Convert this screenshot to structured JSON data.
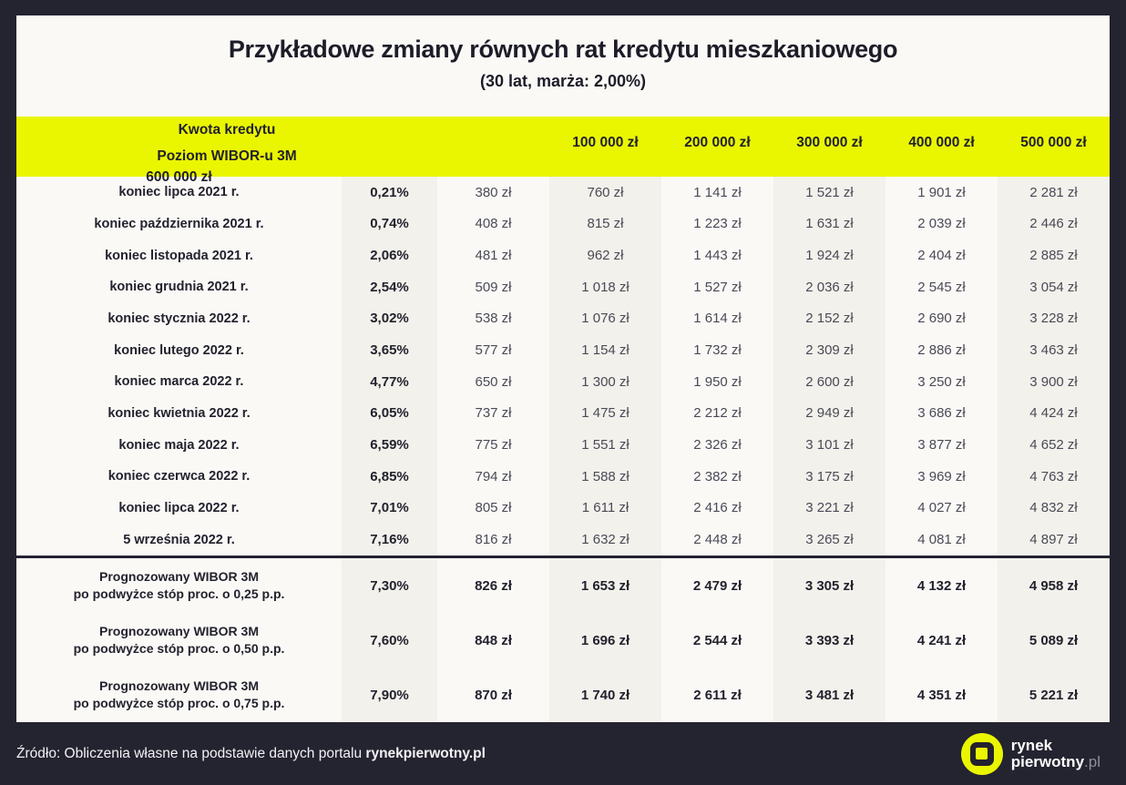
{
  "colors": {
    "background": "#242330",
    "card": "#faf9f6",
    "accent_yellow": "#eaf600",
    "column_tint": "#f2f1eb",
    "text_dark": "#23222e"
  },
  "chart_data": {
    "type": "table",
    "title": "Przykładowe zmiany równych rat kredytu mieszkaniowego",
    "subtitle": "(30 lat, marża: 2,00%)",
    "header": {
      "label_line1": "Kwota kredytu",
      "label_line2": "Poziom WIBOR-u 3M",
      "amount_columns": [
        "100 000 zł",
        "200 000 zł",
        "300 000 zł",
        "400 000 zł",
        "500 000 zł",
        "600 000 zł"
      ]
    },
    "rows": [
      {
        "label": "koniec lipca 2021 r.",
        "wibor": "0,21%",
        "values": [
          "380 zł",
          "760 zł",
          "1 141 zł",
          "1 521 zł",
          "1 901 zł",
          "2 281 zł"
        ]
      },
      {
        "label": "koniec października 2021 r.",
        "wibor": "0,74%",
        "values": [
          "408 zł",
          "815 zł",
          "1 223 zł",
          "1 631 zł",
          "2 039 zł",
          "2 446 zł"
        ]
      },
      {
        "label": "koniec listopada 2021 r.",
        "wibor": "2,06%",
        "values": [
          "481 zł",
          "962 zł",
          "1 443 zł",
          "1 924 zł",
          "2 404 zł",
          "2 885 zł"
        ]
      },
      {
        "label": "koniec grudnia 2021 r.",
        "wibor": "2,54%",
        "values": [
          "509 zł",
          "1 018 zł",
          "1 527 zł",
          "2 036 zł",
          "2 545 zł",
          "3 054 zł"
        ]
      },
      {
        "label": "koniec stycznia 2022 r.",
        "wibor": "3,02%",
        "values": [
          "538 zł",
          "1 076 zł",
          "1 614 zł",
          "2 152 zł",
          "2 690 zł",
          "3 228 zł"
        ]
      },
      {
        "label": "koniec lutego 2022 r.",
        "wibor": "3,65%",
        "values": [
          "577 zł",
          "1 154 zł",
          "1 732 zł",
          "2 309 zł",
          "2 886 zł",
          "3 463 zł"
        ]
      },
      {
        "label": "koniec marca 2022 r.",
        "wibor": "4,77%",
        "values": [
          "650 zł",
          "1 300 zł",
          "1 950 zł",
          "2 600 zł",
          "3 250 zł",
          "3 900 zł"
        ]
      },
      {
        "label": "koniec kwietnia 2022 r.",
        "wibor": "6,05%",
        "values": [
          "737 zł",
          "1 475 zł",
          "2 212 zł",
          "2 949 zł",
          "3 686 zł",
          "4 424 zł"
        ]
      },
      {
        "label": "koniec maja 2022 r.",
        "wibor": "6,59%",
        "values": [
          "775 zł",
          "1 551 zł",
          "2 326 zł",
          "3 101 zł",
          "3 877 zł",
          "4 652 zł"
        ]
      },
      {
        "label": "koniec czerwca 2022 r.",
        "wibor": "6,85%",
        "values": [
          "794 zł",
          "1 588 zł",
          "2 382 zł",
          "3 175 zł",
          "3 969 zł",
          "4 763 zł"
        ]
      },
      {
        "label": "koniec lipca 2022 r.",
        "wibor": "7,01%",
        "values": [
          "805 zł",
          "1 611 zł",
          "2 416 zł",
          "3 221 zł",
          "4 027 zł",
          "4 832 zł"
        ]
      },
      {
        "label": "5 września 2022 r.",
        "wibor": "7,16%",
        "values": [
          "816 zł",
          "1 632 zł",
          "2 448 zł",
          "3 265 zł",
          "4 081 zł",
          "4 897 zł"
        ]
      }
    ],
    "forecast_rows": [
      {
        "label_line1": "Prognozowany WIBOR 3M",
        "label_line2": "po podwyżce stóp proc. o 0,25 p.p.",
        "wibor": "7,30%",
        "values": [
          "826 zł",
          "1 653 zł",
          "2 479 zł",
          "3 305 zł",
          "4 132 zł",
          "4 958 zł"
        ]
      },
      {
        "label_line1": "Prognozowany WIBOR 3M",
        "label_line2": "po podwyżce stóp proc. o 0,50 p.p.",
        "wibor": "7,60%",
        "values": [
          "848 zł",
          "1 696 zł",
          "2 544 zł",
          "3 393 zł",
          "4 241 zł",
          "5 089 zł"
        ]
      },
      {
        "label_line1": "Prognozowany WIBOR 3M",
        "label_line2": "po podwyżce stóp proc. o 0,75 p.p.",
        "wibor": "7,90%",
        "values": [
          "870 zł",
          "1 740 zł",
          "2 611 zł",
          "3 481 zł",
          "4 351 zł",
          "5 221 zł"
        ]
      }
    ]
  },
  "footer": {
    "source_prefix": "Źródło: Obliczenia własne na podstawie danych portalu ",
    "source_bold": "rynekpierwotny.pl",
    "logo_line1": "rynek",
    "logo_line2": "pierwotny",
    "logo_suffix": ".pl"
  }
}
